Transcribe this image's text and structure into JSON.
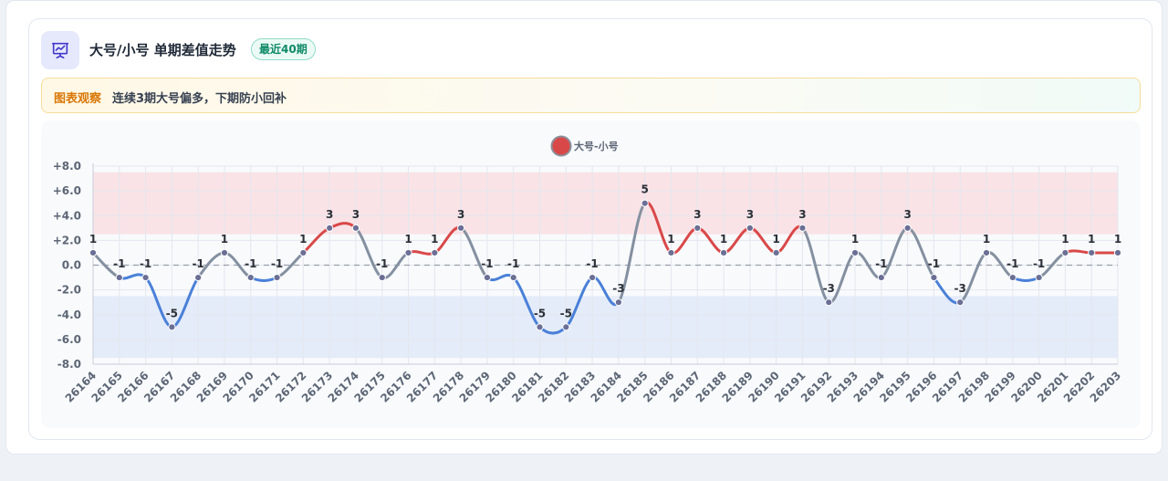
{
  "header": {
    "title": "大号/小号 单期差值走势",
    "badge": "最近40期",
    "icon": "chart-presentation-icon"
  },
  "insight": {
    "label": "图表观察",
    "text": "连续3期大号偏多，下期防小回补"
  },
  "colors": {
    "positive": "#d94848",
    "negative": "#4a80d8",
    "neutral": "#8490a0",
    "positive_band": "#f9e3e6",
    "negative_band": "#e4ecf9",
    "marker": "#6b6f95"
  },
  "chart_data": {
    "type": "line",
    "title": "",
    "xlabel": "",
    "ylabel": "",
    "ylim": [
      -8,
      8
    ],
    "yticks": [
      8,
      6,
      4,
      2,
      0,
      -2,
      -4,
      -6,
      -8
    ],
    "ytick_labels": [
      "+8.0",
      "+6.0",
      "+4.0",
      "+2.0",
      "0.0",
      "-2.0",
      "-4.0",
      "-6.0",
      "-8.0"
    ],
    "legend": {
      "position": "top-center",
      "label": "大号-小号"
    },
    "grid": true,
    "reference_line": 0,
    "bands": [
      {
        "from": 2.5,
        "to": 7.5,
        "color": "#f9e3e6"
      },
      {
        "from": -7.5,
        "to": -2.5,
        "color": "#e4ecf9"
      }
    ],
    "categories": [
      "26164",
      "26165",
      "26166",
      "26167",
      "26168",
      "26169",
      "26170",
      "26171",
      "26172",
      "26173",
      "26174",
      "26175",
      "26176",
      "26177",
      "26178",
      "26179",
      "26180",
      "26181",
      "26182",
      "26183",
      "26184",
      "26185",
      "26186",
      "26187",
      "26188",
      "26189",
      "26190",
      "26191",
      "26192",
      "26193",
      "26194",
      "26195",
      "26196",
      "26197",
      "26198",
      "26199",
      "26200",
      "26201",
      "26202",
      "26203"
    ],
    "series": [
      {
        "name": "大号-小号",
        "values": [
          1,
          -1,
          -1,
          -5,
          -1,
          1,
          -1,
          -1,
          1,
          3,
          3,
          -1,
          1,
          1,
          3,
          -1,
          -1,
          -5,
          -5,
          -1,
          -3,
          5,
          1,
          3,
          1,
          3,
          1,
          3,
          -3,
          1,
          -1,
          3,
          -1,
          -3,
          1,
          -1,
          -1,
          1,
          1,
          1
        ],
        "data_labels": [
          "1",
          "-1",
          "-1",
          "-5",
          "-1",
          "1",
          "-1",
          "-1",
          "1",
          "3",
          "3",
          "-1",
          "1",
          "1",
          "3",
          "-1",
          "-1",
          "-5",
          "-5",
          "-1",
          "-3",
          "5",
          "1",
          "3",
          "1",
          "3",
          "1",
          "3",
          "-3",
          "1",
          "-1",
          "3",
          "-1",
          "-3",
          "1",
          "-1",
          "-1",
          "1",
          "1",
          "1"
        ]
      }
    ]
  }
}
